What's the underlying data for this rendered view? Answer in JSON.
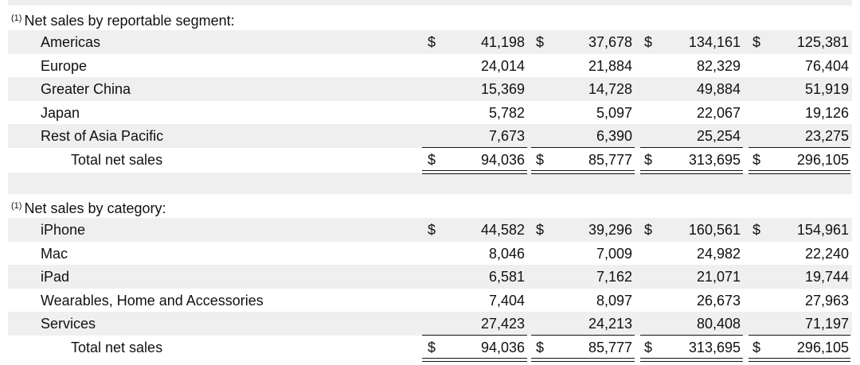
{
  "segment_section": {
    "footnote": "(1)",
    "title": "Net sales by reportable segment:",
    "rows": [
      {
        "label": "Americas",
        "v1": "41,198",
        "v2": "37,678",
        "v3": "134,161",
        "v4": "125,381"
      },
      {
        "label": "Europe",
        "v1": "24,014",
        "v2": "21,884",
        "v3": "82,329",
        "v4": "76,404"
      },
      {
        "label": "Greater China",
        "v1": "15,369",
        "v2": "14,728",
        "v3": "49,884",
        "v4": "51,919"
      },
      {
        "label": "Japan",
        "v1": "5,782",
        "v2": "5,097",
        "v3": "22,067",
        "v4": "19,126"
      },
      {
        "label": "Rest of Asia Pacific",
        "v1": "7,673",
        "v2": "6,390",
        "v3": "25,254",
        "v4": "23,275"
      }
    ],
    "total": {
      "label": "Total net sales",
      "v1": "94,036",
      "v2": "85,777",
      "v3": "313,695",
      "v4": "296,105"
    }
  },
  "category_section": {
    "footnote": "(1)",
    "title": "Net sales by category:",
    "rows": [
      {
        "label": "iPhone",
        "v1": "44,582",
        "v2": "39,296",
        "v3": "160,561",
        "v4": "154,961"
      },
      {
        "label": "Mac",
        "v1": "8,046",
        "v2": "7,009",
        "v3": "24,982",
        "v4": "22,240"
      },
      {
        "label": "iPad",
        "v1": "6,581",
        "v2": "7,162",
        "v3": "21,071",
        "v4": "19,744"
      },
      {
        "label": "Wearables, Home and Accessories",
        "v1": "7,404",
        "v2": "8,097",
        "v3": "26,673",
        "v4": "27,963"
      },
      {
        "label": "Services",
        "v1": "27,423",
        "v2": "24,213",
        "v3": "80,408",
        "v4": "71,197"
      }
    ],
    "total": {
      "label": "Total net sales",
      "v1": "94,036",
      "v2": "85,777",
      "v3": "313,695",
      "v4": "296,105"
    }
  },
  "currency_symbol": "$"
}
